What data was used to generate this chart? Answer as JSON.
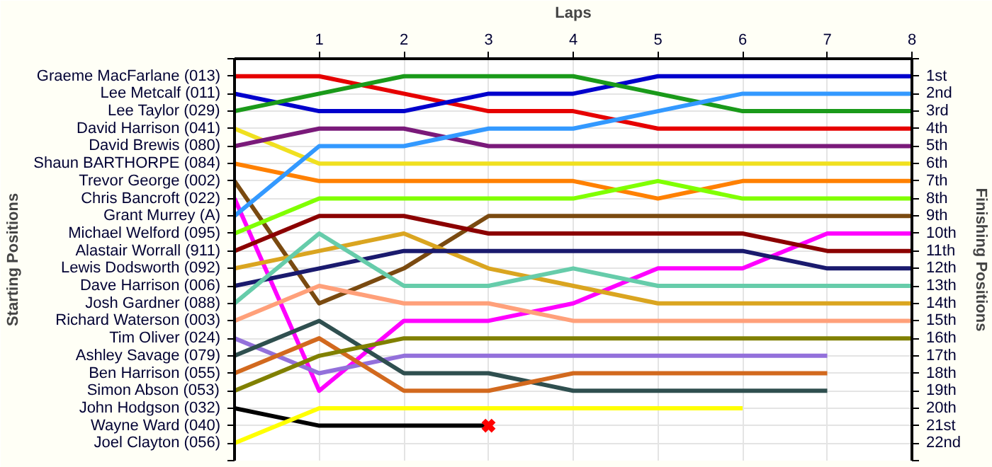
{
  "chart_data": {
    "type": "line",
    "xlabel": "Laps",
    "ylabel": "Finishing Positions",
    "x": [
      0,
      1,
      2,
      3,
      4,
      5,
      6,
      7,
      8
    ],
    "xlim": [
      0,
      8
    ],
    "xticks": [
      1,
      2,
      3,
      4,
      5,
      6,
      7,
      8
    ],
    "ylim": [
      23,
      0
    ],
    "grid": true,
    "yticks": [
      {
        "value": 0,
        "label": null
      },
      {
        "value": 1,
        "label": "1st"
      },
      {
        "value": 2,
        "label": "2nd"
      },
      {
        "value": 3,
        "label": "3rd"
      },
      {
        "value": 4,
        "label": "4th"
      },
      {
        "value": 5,
        "label": "5th"
      },
      {
        "value": 6,
        "label": "6th"
      },
      {
        "value": 7,
        "label": "7th"
      },
      {
        "value": 8,
        "label": "8th"
      },
      {
        "value": 9,
        "label": "9th"
      },
      {
        "value": 10,
        "label": "10th"
      },
      {
        "value": 11,
        "label": "11th"
      },
      {
        "value": 12,
        "label": "12th"
      },
      {
        "value": 13,
        "label": "13th"
      },
      {
        "value": 14,
        "label": "14th"
      },
      {
        "value": 15,
        "label": "15th"
      },
      {
        "value": 16,
        "label": "16th"
      },
      {
        "value": 17,
        "label": "17th"
      },
      {
        "value": 18,
        "label": "18th"
      },
      {
        "value": 19,
        "label": "19th"
      },
      {
        "value": 20,
        "label": "20th"
      },
      {
        "value": 21,
        "label": "21st"
      },
      {
        "value": 22,
        "label": "22nd"
      },
      {
        "value": 23,
        "label": null
      }
    ],
    "annotations": [
      "Starting Positions",
      "Graeme MacFarlane (013)",
      "Lee Metcalf (011)",
      "Lee Taylor (029)",
      "David Harrison (041)",
      "David Brewis (080)",
      "Shaun BARTHORPE (084)",
      "Trevor George (002)",
      "Chris Bancroft (022)",
      "Grant Murrey (A)",
      "Michael Welford (095)",
      "Alastair Worrall (911)",
      "Lewis Dodsworth (092)",
      "Dave Harrison (006)",
      "Josh Gardner (088)",
      "Richard Waterson (003)",
      "Tim Oliver (024)",
      "Ashley Savage (079)",
      "Ben Harrison (055)",
      "Simon Abson (053)",
      "John Hodgson (032)",
      "Wayne Ward (040)",
      "Joel Clayton (056)"
    ],
    "series": [
      {
        "color": "#e60000",
        "values": [
          1,
          1,
          2,
          3,
          3,
          4,
          4,
          4,
          4
        ]
      },
      {
        "color": "#0000cc",
        "values": [
          2,
          3,
          3,
          2,
          2,
          1,
          1,
          1,
          1
        ]
      },
      {
        "color": "#1a9a1a",
        "values": [
          3,
          2,
          1,
          1,
          1,
          2,
          3,
          3,
          3
        ]
      },
      {
        "color": "#f0e020",
        "values": [
          4,
          6,
          6,
          6,
          6,
          6,
          6,
          6,
          6
        ]
      },
      {
        "color": "#7a1a7a",
        "values": [
          5,
          4,
          4,
          5,
          5,
          5,
          5,
          5,
          5
        ]
      },
      {
        "color": "#ff8000",
        "values": [
          6,
          7,
          7,
          7,
          7,
          8,
          7,
          7,
          7
        ]
      },
      {
        "color": "#7a4a10",
        "values": [
          7,
          14,
          12,
          9,
          9,
          9,
          9,
          9,
          9
        ]
      },
      {
        "color": "#ff00ff",
        "values": [
          8,
          19,
          15,
          15,
          14,
          12,
          12,
          10,
          10
        ]
      },
      {
        "color": "#3399ff",
        "values": [
          9,
          5,
          5,
          4,
          4,
          3,
          2,
          2,
          2
        ]
      },
      {
        "color": "#80ff00",
        "values": [
          10,
          8,
          8,
          8,
          8,
          7,
          8,
          8,
          8
        ]
      },
      {
        "color": "#8b0000",
        "values": [
          11,
          9,
          9,
          10,
          10,
          10,
          10,
          11,
          11
        ]
      },
      {
        "color": "#daa520",
        "values": [
          12,
          11,
          10,
          12,
          13,
          14,
          14,
          14,
          14
        ]
      },
      {
        "color": "#1a1a6e",
        "values": [
          13,
          12,
          11,
          11,
          11,
          11,
          11,
          12,
          12
        ]
      },
      {
        "color": "#66ccaa",
        "values": [
          14,
          10,
          13,
          13,
          12,
          13,
          13,
          13,
          13
        ]
      },
      {
        "color": "#ffa07a",
        "values": [
          15,
          13,
          14,
          14,
          15,
          15,
          15,
          15,
          15
        ]
      },
      {
        "color": "#9370db",
        "values": [
          16,
          18,
          17,
          17,
          17,
          17,
          17,
          17,
          null
        ]
      },
      {
        "color": "#2f4f4f",
        "values": [
          17,
          15,
          18,
          18,
          19,
          19,
          19,
          19,
          null
        ]
      },
      {
        "color": "#d2691e",
        "values": [
          18,
          16,
          19,
          19,
          18,
          18,
          18,
          18,
          null
        ]
      },
      {
        "color": "#808000",
        "values": [
          19,
          17,
          16,
          16,
          16,
          16,
          16,
          16,
          16
        ]
      },
      {
        "color": "#000000",
        "values": [
          20,
          21,
          21,
          21,
          null,
          null,
          null,
          null,
          null
        ]
      },
      {
        "color": "#ffff00",
        "values": [
          22,
          20,
          20,
          20,
          20,
          20,
          20,
          null,
          null
        ]
      },
      {
        "type": "scatter",
        "marker": "cross",
        "color": "#ff0000",
        "x": [
          3
        ],
        "values": [
          21
        ]
      }
    ]
  }
}
